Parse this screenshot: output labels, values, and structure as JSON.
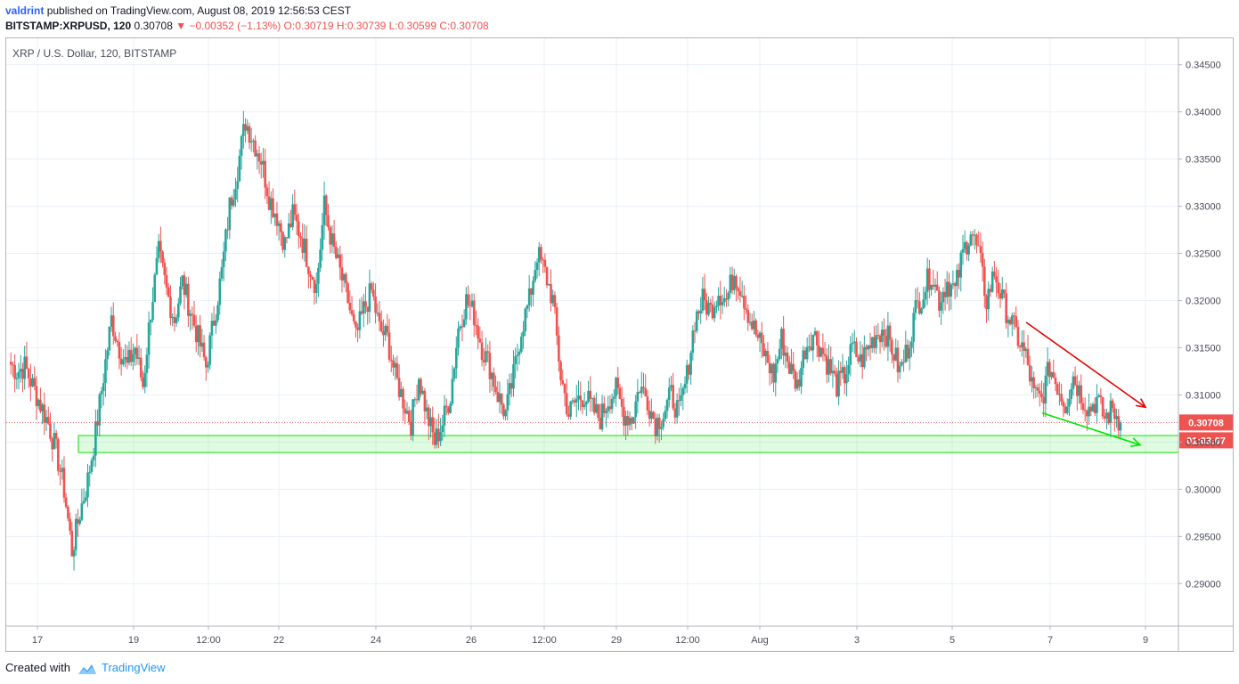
{
  "header": {
    "publisher": "valdrint",
    "published_text": "published on TradingView.com, August 08, 2019 12:56:53 CEST",
    "symbol": "BITSTAMP:XRPUSD, 120",
    "last": "0.30708",
    "change": "−0.00352 (−1.13%)",
    "ohlc": "O:0.30719 H:0.30739 L:0.30599 C:0.30708"
  },
  "chart_title": "XRP / U.S. Dollar, 120, BITSTAMP",
  "footer": {
    "created_with": "Created with",
    "brand": "TradingView"
  },
  "colors": {
    "up": "#26a69a",
    "down": "#ef5350",
    "grid": "#e9f0f7",
    "support": "#00e600",
    "resistance_arrow": "#e60000"
  },
  "chart_data": {
    "type": "candlestick",
    "title": "XRP / U.S. Dollar, 120, BITSTAMP",
    "x_labels": [
      "17",
      "19",
      "12:00",
      "22",
      "24",
      "26",
      "12:00",
      "29",
      "12:00",
      "Aug",
      "3",
      "5",
      "7",
      "9"
    ],
    "y_ticks": [
      "0.34500",
      "0.34000",
      "0.33500",
      "0.33000",
      "0.32500",
      "0.32000",
      "0.31500",
      "0.31000",
      "0.30500",
      "0.30000",
      "0.29500",
      "0.29000"
    ],
    "ylim": [
      0.2855,
      0.3478
    ],
    "grid": true,
    "last_price_label": "0.30708",
    "countdown_label": "01:03:07",
    "price_path": [
      [
        0.3135,
        0.3125,
        0.313,
        0.311,
        0.309,
        0.307,
        0.304,
        0.3,
        0.2935,
        0.2975,
        0.301,
        0.306,
        0.312,
        0.318,
        0.315,
        0.313
      ],
      [
        0.315,
        0.311,
        0.319,
        0.325,
        0.321,
        0.318,
        0.322,
        0.319,
        0.316,
        0.313,
        0.318,
        0.323,
        0.33,
        0.334,
        0.339,
        0.337
      ],
      [
        0.335,
        0.331,
        0.329,
        0.326,
        0.329,
        0.327,
        0.324,
        0.3215,
        0.33,
        0.326,
        0.323,
        0.32,
        0.316,
        0.319,
        0.321,
        0.317
      ],
      [
        0.316,
        0.312,
        0.3095,
        0.307,
        0.312,
        0.308,
        0.305,
        0.307,
        0.31,
        0.317,
        0.32,
        0.3185,
        0.315,
        0.313,
        0.31,
        0.308
      ],
      [
        0.312,
        0.317,
        0.32,
        0.325,
        0.323,
        0.32,
        0.312,
        0.308,
        0.3095,
        0.31,
        0.3085,
        0.3075,
        0.3095,
        0.3105,
        0.308,
        0.3075
      ],
      [
        0.311,
        0.3095,
        0.307,
        0.308,
        0.31,
        0.308,
        0.312,
        0.318,
        0.32,
        0.319,
        0.321,
        0.32,
        0.323,
        0.321,
        0.318,
        0.316
      ],
      [
        0.314,
        0.312,
        0.316,
        0.313,
        0.311,
        0.315,
        0.3165,
        0.315,
        0.313,
        0.311,
        0.312,
        0.315,
        0.3135,
        0.315,
        0.3165,
        0.317
      ],
      [
        0.315,
        0.3125,
        0.315,
        0.319,
        0.321,
        0.323,
        0.32,
        0.322,
        0.321,
        0.325,
        0.3275,
        0.325,
        0.32,
        0.323,
        0.32,
        0.318
      ],
      [
        0.316,
        0.314,
        0.31,
        0.3095,
        0.313,
        0.311,
        0.309,
        0.312,
        0.31,
        0.3085,
        0.3095,
        0.3075,
        0.3085,
        0.3071
      ]
    ],
    "annotations": [
      {
        "type": "rectangle",
        "label": "support-zone",
        "y_range": [
          0.3039,
          0.3057
        ]
      },
      {
        "type": "arrow",
        "label": "descending-resistance",
        "from_y": 0.3177,
        "to_y": 0.3087
      },
      {
        "type": "arrow",
        "label": "descending-support",
        "from_y": 0.3081,
        "to_y": 0.3047
      }
    ]
  }
}
